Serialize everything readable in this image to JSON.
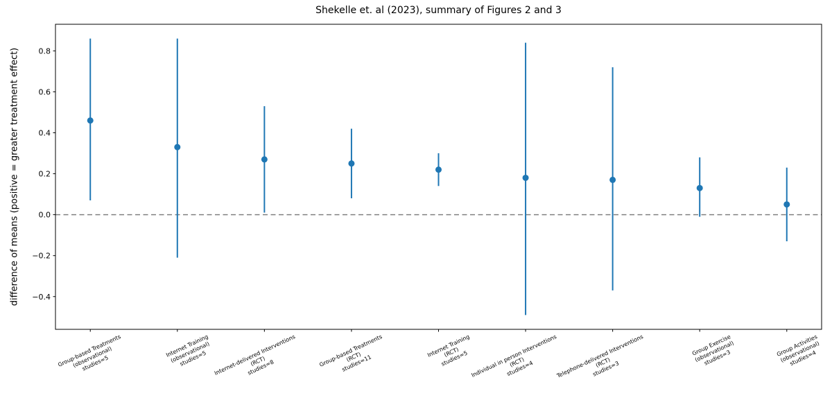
{
  "figure": {
    "background": "#ffffff"
  },
  "chart_data": {
    "type": "scatter",
    "subtype": "errorbar",
    "title": "Shekelle et. al (2023), summary of Figures 2 and 3",
    "xlabel": "",
    "ylabel": "difference of means (positive = greater treatment effect)",
    "marker_color": "#1f77b4",
    "axis_color": "#000000",
    "zero_line": {
      "y": 0.0,
      "style": "dashed",
      "color": "#808080"
    },
    "ylim": [
      -0.56,
      0.93
    ],
    "grid": false,
    "legend": null,
    "yticks": [
      {
        "value": -0.4,
        "label": "−0.4"
      },
      {
        "value": -0.2,
        "label": "−0.2"
      },
      {
        "value": 0.0,
        "label": "0.0"
      },
      {
        "value": 0.2,
        "label": "0.2"
      },
      {
        "value": 0.4,
        "label": "0.4"
      },
      {
        "value": 0.6,
        "label": "0.6"
      },
      {
        "value": 0.8,
        "label": "0.8"
      }
    ],
    "points": [
      {
        "category_lines": [
          "Group-based Treatments",
          "(observational)",
          "studies=5"
        ],
        "mean": 0.46,
        "ci_low": 0.07,
        "ci_high": 0.86
      },
      {
        "category_lines": [
          "Internet Training",
          "(observational)",
          "studies=5"
        ],
        "mean": 0.33,
        "ci_low": -0.21,
        "ci_high": 0.86
      },
      {
        "category_lines": [
          "Internet-delivered Interventions",
          "(RCT)",
          "studies=8"
        ],
        "mean": 0.27,
        "ci_low": 0.01,
        "ci_high": 0.53
      },
      {
        "category_lines": [
          "Group-based Treatments",
          "(RCT)",
          "studies=11"
        ],
        "mean": 0.25,
        "ci_low": 0.08,
        "ci_high": 0.42
      },
      {
        "category_lines": [
          "Internet Training",
          "(RCT)",
          "studies=5"
        ],
        "mean": 0.22,
        "ci_low": 0.14,
        "ci_high": 0.3
      },
      {
        "category_lines": [
          "Individual in person Interventions",
          "(RCT)",
          "studies=4"
        ],
        "mean": 0.18,
        "ci_low": -0.49,
        "ci_high": 0.84
      },
      {
        "category_lines": [
          "Telephone-delivered Interventions",
          "(RCT)",
          "studies=3"
        ],
        "mean": 0.17,
        "ci_low": -0.37,
        "ci_high": 0.72
      },
      {
        "category_lines": [
          "Group Exercise",
          "(observational)",
          "studies=3"
        ],
        "mean": 0.13,
        "ci_low": -0.01,
        "ci_high": 0.28
      },
      {
        "category_lines": [
          "Group Activities",
          "(observational)",
          "studies=4"
        ],
        "mean": 0.05,
        "ci_low": -0.13,
        "ci_high": 0.23
      }
    ]
  }
}
